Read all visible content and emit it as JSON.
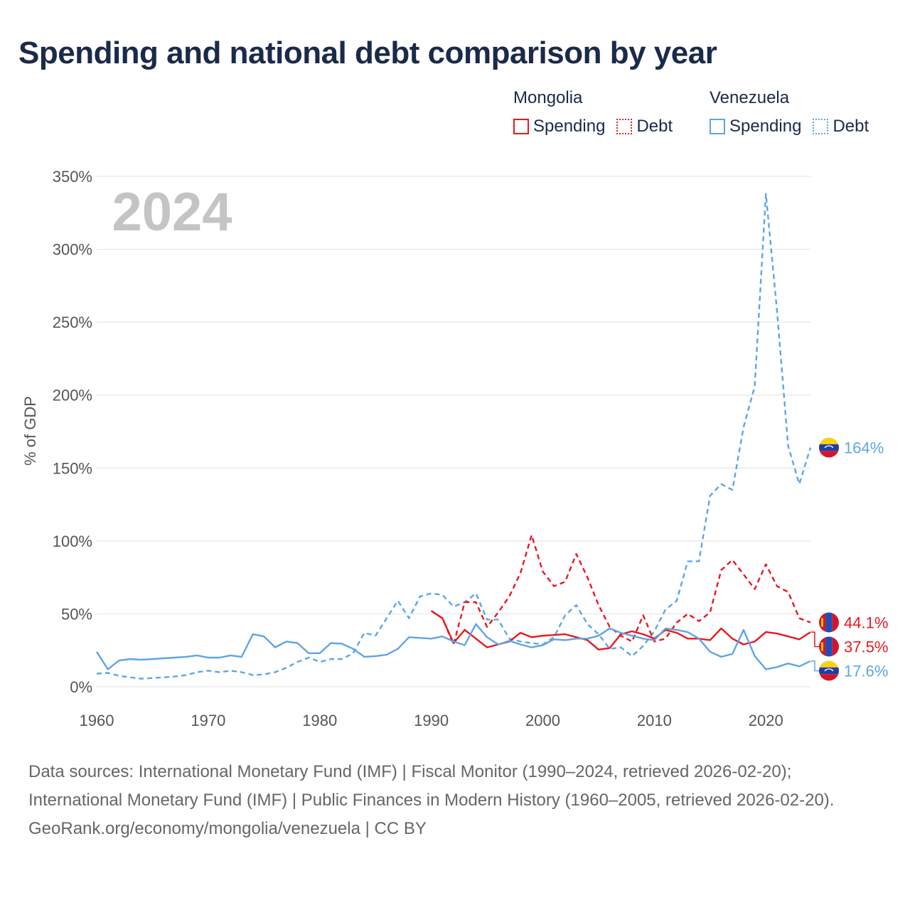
{
  "title": "Spending and national debt comparison by year",
  "legend": {
    "mongolia": {
      "country": "Mongolia",
      "spending": "Spending",
      "debt": "Debt"
    },
    "venezuela": {
      "country": "Venezuela",
      "spending": "Spending",
      "debt": "Debt"
    }
  },
  "colors": {
    "mongolia": "#e8191f",
    "venezuela": "#5ea5e6",
    "grid": "#e6e6e6",
    "axis_text": "#555555",
    "year_watermark": "#c4c4c4"
  },
  "sources": {
    "line1": "Data sources: International Monetary Fund (IMF) | Fiscal Monitor (1990–2024, retrieved 2026-02-20); International Monetary Fund (IMF) | Public Finances in Modern History (1960–2005, retrieved 2026-02-20).",
    "line2": "GeoRank.org/economy/mongolia/venezuela | CC BY"
  },
  "chart_data": {
    "type": "line",
    "year_label": "2024",
    "ylabel": "% of GDP",
    "xlabel": "",
    "xlim": [
      1960,
      2024
    ],
    "ylim": [
      0,
      350
    ],
    "x_ticks": [
      1960,
      1970,
      1980,
      1990,
      2000,
      2010,
      2020
    ],
    "y_ticks": [
      0,
      50,
      100,
      150,
      200,
      250,
      300,
      350
    ],
    "y_tick_labels": [
      "0%",
      "50%",
      "100%",
      "150%",
      "200%",
      "250%",
      "300%",
      "350%"
    ],
    "series": [
      {
        "name": "Venezuela Debt",
        "country": "venezuela",
        "style": "dashed",
        "end_label": "164%",
        "x": [
          1960,
          1961,
          1962,
          1963,
          1964,
          1965,
          1966,
          1967,
          1968,
          1969,
          1970,
          1971,
          1972,
          1973,
          1974,
          1975,
          1976,
          1977,
          1978,
          1979,
          1980,
          1981,
          1982,
          1983,
          1984,
          1985,
          1986,
          1987,
          1988,
          1989,
          1990,
          1991,
          1992,
          1993,
          1994,
          1995,
          1996,
          1997,
          1998,
          1999,
          2000,
          2001,
          2002,
          2003,
          2004,
          2005,
          2006,
          2007,
          2008,
          2009,
          2010,
          2011,
          2012,
          2013,
          2014,
          2015,
          2016,
          2017,
          2018,
          2019,
          2020,
          2021,
          2022,
          2023,
          2024
        ],
        "values": [
          9,
          9.5,
          7.5,
          6.5,
          5.5,
          6,
          6.5,
          7,
          8,
          10,
          11,
          10,
          11,
          10,
          8,
          8.5,
          10,
          13,
          17,
          20,
          17,
          19,
          19,
          23,
          37,
          35,
          47,
          59,
          47,
          62,
          64,
          63,
          55,
          58,
          64,
          46,
          46,
          33,
          31,
          30,
          29,
          34,
          49,
          56,
          43,
          36,
          26,
          27,
          21,
          28,
          38,
          53,
          59,
          86,
          86,
          131,
          139,
          135,
          178,
          206,
          338,
          258,
          165,
          139,
          164
        ]
      },
      {
        "name": "Mongolia Debt",
        "country": "mongolia",
        "style": "dashed",
        "end_label": "44.1%",
        "x": [
          1990,
          1991,
          1992,
          1993,
          1994,
          1995,
          1996,
          1997,
          1998,
          1999,
          2000,
          2001,
          2002,
          2003,
          2004,
          2005,
          2006,
          2007,
          2008,
          2009,
          2010,
          2011,
          2012,
          2013,
          2014,
          2015,
          2016,
          2017,
          2018,
          2019,
          2020,
          2021,
          2022,
          2023,
          2024
        ],
        "values": [
          52,
          47,
          29,
          58,
          58,
          41,
          51,
          62,
          78,
          104,
          79,
          69,
          72,
          91,
          75,
          56,
          41,
          35,
          31,
          49,
          31,
          33,
          44,
          50,
          45,
          51,
          80,
          87,
          77,
          67,
          84,
          69,
          65,
          47,
          44.1
        ]
      },
      {
        "name": "Mongolia Spending",
        "country": "mongolia",
        "style": "solid",
        "end_label": "37.5%",
        "x": [
          1990,
          1991,
          1992,
          1993,
          1994,
          1995,
          1996,
          1997,
          1998,
          1999,
          2000,
          2001,
          2002,
          2003,
          2004,
          2005,
          2006,
          2007,
          2008,
          2009,
          2010,
          2011,
          2012,
          2013,
          2014,
          2015,
          2016,
          2017,
          2018,
          2019,
          2020,
          2021,
          2022,
          2023,
          2024
        ],
        "values": [
          52,
          47,
          30,
          39,
          33,
          27,
          29,
          31,
          37,
          34,
          35,
          35.5,
          36,
          34,
          32,
          25.5,
          26.5,
          36,
          38,
          36,
          33,
          39,
          37,
          33,
          33,
          32,
          40,
          33,
          29,
          31,
          37.5,
          36.5,
          34.5,
          32.5,
          37.5
        ]
      },
      {
        "name": "Venezuela Spending",
        "country": "venezuela",
        "style": "solid",
        "end_label": "17.6%",
        "x": [
          1960,
          1961,
          1962,
          1963,
          1964,
          1965,
          1966,
          1967,
          1968,
          1969,
          1970,
          1971,
          1972,
          1973,
          1974,
          1975,
          1976,
          1977,
          1978,
          1979,
          1980,
          1981,
          1982,
          1983,
          1984,
          1985,
          1986,
          1987,
          1988,
          1989,
          1990,
          1991,
          1992,
          1993,
          1994,
          1995,
          1996,
          1997,
          1998,
          1999,
          2000,
          2001,
          2002,
          2003,
          2004,
          2005,
          2006,
          2007,
          2008,
          2009,
          2010,
          2011,
          2012,
          2013,
          2014,
          2015,
          2016,
          2017,
          2018,
          2019,
          2020,
          2021,
          2022,
          2023,
          2024
        ],
        "values": [
          24,
          12,
          18,
          19,
          18.5,
          19,
          19.5,
          20,
          20.5,
          21.5,
          20,
          20,
          21.5,
          20.5,
          36,
          34.5,
          27,
          31,
          30,
          23,
          23,
          30,
          29.5,
          26,
          20.5,
          21,
          22,
          26,
          34,
          33.5,
          33,
          34.5,
          31,
          28.5,
          43,
          34,
          29,
          31.5,
          29,
          27,
          28.5,
          32.5,
          32,
          33,
          33,
          35,
          40,
          37,
          35,
          33,
          32,
          40,
          39,
          37.5,
          33,
          24,
          20.5,
          22.5,
          39,
          21,
          12,
          13.5,
          16,
          14,
          17.6
        ]
      }
    ]
  }
}
